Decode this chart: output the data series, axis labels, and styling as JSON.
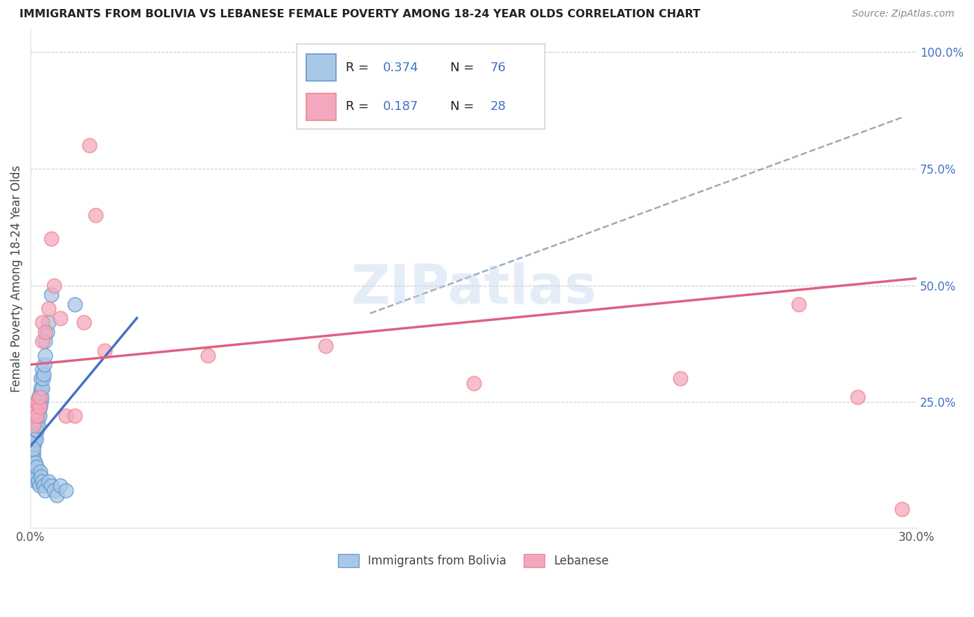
{
  "title": "IMMIGRANTS FROM BOLIVIA VS LEBANESE FEMALE POVERTY AMONG 18-24 YEAR OLDS CORRELATION CHART",
  "source": "Source: ZipAtlas.com",
  "ylabel": "Female Poverty Among 18-24 Year Olds",
  "xlim": [
    0.0,
    0.3
  ],
  "ylim": [
    -0.02,
    1.05
  ],
  "xticks": [
    0.0,
    0.05,
    0.1,
    0.15,
    0.2,
    0.25,
    0.3
  ],
  "xticklabels": [
    "0.0%",
    "",
    "",
    "",
    "",
    "",
    "30.0%"
  ],
  "yticks_right": [
    0.25,
    0.5,
    0.75,
    1.0
  ],
  "ytick_right_labels": [
    "25.0%",
    "50.0%",
    "75.0%",
    "100.0%"
  ],
  "bolivia_color": "#a8c8e8",
  "lebanese_color": "#f4a8c0",
  "bolivia_edge": "#6699cc",
  "lebanese_edge": "#ee8888",
  "trend_bolivia_color": "#4472c4",
  "trend_lebanese_color": "#e06080",
  "dashed_line_color": "#99aabb",
  "legend_label_bolivia": "Immigrants from Bolivia",
  "legend_label_lebanese": "Lebanese",
  "watermark": "ZIPatlas",
  "bolivia_scatter_x": [
    0.0005,
    0.0006,
    0.0007,
    0.0008,
    0.0009,
    0.001,
    0.001,
    0.001,
    0.0012,
    0.0012,
    0.0013,
    0.0014,
    0.0015,
    0.0015,
    0.0016,
    0.0017,
    0.0017,
    0.0018,
    0.0018,
    0.0019,
    0.002,
    0.002,
    0.002,
    0.0022,
    0.0022,
    0.0023,
    0.0024,
    0.0025,
    0.0025,
    0.0026,
    0.0027,
    0.0028,
    0.003,
    0.003,
    0.0032,
    0.0033,
    0.0034,
    0.0035,
    0.0035,
    0.0038,
    0.004,
    0.004,
    0.0042,
    0.0045,
    0.0047,
    0.005,
    0.005,
    0.0055,
    0.006,
    0.007,
    0.0005,
    0.0006,
    0.0007,
    0.0008,
    0.001,
    0.001,
    0.0012,
    0.0015,
    0.0016,
    0.0018,
    0.002,
    0.0022,
    0.0025,
    0.003,
    0.0032,
    0.0035,
    0.004,
    0.0045,
    0.005,
    0.006,
    0.007,
    0.008,
    0.009,
    0.01,
    0.012,
    0.015
  ],
  "bolivia_scatter_y": [
    0.15,
    0.17,
    0.13,
    0.16,
    0.14,
    0.18,
    0.2,
    0.22,
    0.16,
    0.19,
    0.21,
    0.17,
    0.19,
    0.23,
    0.18,
    0.2,
    0.22,
    0.17,
    0.21,
    0.19,
    0.2,
    0.23,
    0.25,
    0.19,
    0.22,
    0.24,
    0.21,
    0.2,
    0.24,
    0.22,
    0.23,
    0.26,
    0.22,
    0.25,
    0.24,
    0.27,
    0.25,
    0.28,
    0.3,
    0.26,
    0.28,
    0.32,
    0.3,
    0.31,
    0.33,
    0.35,
    0.38,
    0.4,
    0.42,
    0.48,
    0.1,
    0.12,
    0.11,
    0.09,
    0.13,
    0.15,
    0.11,
    0.1,
    0.12,
    0.08,
    0.09,
    0.11,
    0.08,
    0.07,
    0.1,
    0.09,
    0.08,
    0.07,
    0.06,
    0.08,
    0.07,
    0.06,
    0.05,
    0.07,
    0.06,
    0.46
  ],
  "lebanese_scatter_x": [
    0.0005,
    0.001,
    0.001,
    0.0015,
    0.002,
    0.002,
    0.003,
    0.003,
    0.004,
    0.004,
    0.005,
    0.006,
    0.007,
    0.008,
    0.01,
    0.012,
    0.015,
    0.018,
    0.02,
    0.022,
    0.025,
    0.06,
    0.1,
    0.15,
    0.22,
    0.26,
    0.28,
    0.295
  ],
  "lebanese_scatter_y": [
    0.22,
    0.2,
    0.24,
    0.23,
    0.25,
    0.22,
    0.24,
    0.26,
    0.38,
    0.42,
    0.4,
    0.45,
    0.6,
    0.5,
    0.43,
    0.22,
    0.22,
    0.42,
    0.8,
    0.65,
    0.36,
    0.35,
    0.37,
    0.29,
    0.3,
    0.46,
    0.26,
    0.02
  ],
  "bolivia_trend_x": [
    0.0,
    0.036
  ],
  "bolivia_trend_y": [
    0.155,
    0.43
  ],
  "lebanese_trend_x": [
    0.0,
    0.3
  ],
  "lebanese_trend_y": [
    0.33,
    0.515
  ],
  "dashed_trend_x": [
    0.115,
    0.295
  ],
  "dashed_trend_y": [
    0.44,
    0.86
  ]
}
